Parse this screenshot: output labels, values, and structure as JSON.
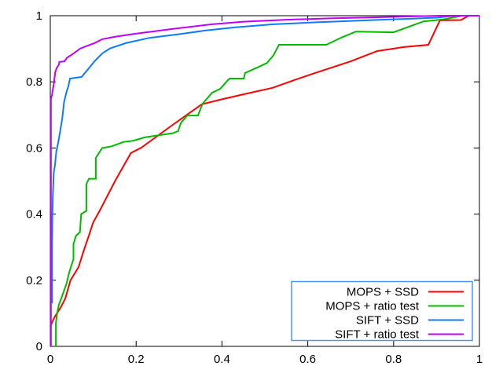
{
  "chart_data": {
    "type": "line",
    "title": "",
    "xlabel": "",
    "ylabel": "",
    "xlim": [
      0,
      1
    ],
    "ylim": [
      0,
      1
    ],
    "x_ticks": [
      "0",
      "0.2",
      "0.4",
      "0.6",
      "0.8",
      "1"
    ],
    "y_ticks": [
      "0",
      "0.2",
      "0.4",
      "0.6",
      "0.8",
      "1"
    ],
    "grid": false,
    "background": "#ffffff",
    "frame_color": "#000000",
    "legend_position": "bottom-right",
    "legend_border_color": "#4d94ff",
    "series": [
      {
        "name": "MOPS + SSD",
        "color": "#ff0000",
        "points": [
          [
            0,
            0.06
          ],
          [
            0.005,
            0.075
          ],
          [
            0.012,
            0.093
          ],
          [
            0.023,
            0.115
          ],
          [
            0.035,
            0.145
          ],
          [
            0.047,
            0.2
          ],
          [
            0.066,
            0.24
          ],
          [
            0.078,
            0.29
          ],
          [
            0.09,
            0.335
          ],
          [
            0.1,
            0.375
          ],
          [
            0.115,
            0.41
          ],
          [
            0.151,
            0.5
          ],
          [
            0.188,
            0.585
          ],
          [
            0.212,
            0.601
          ],
          [
            0.28,
            0.665
          ],
          [
            0.353,
            0.732
          ],
          [
            0.396,
            0.746
          ],
          [
            0.46,
            0.765
          ],
          [
            0.518,
            0.782
          ],
          [
            0.57,
            0.806
          ],
          [
            0.615,
            0.826
          ],
          [
            0.7,
            0.862
          ],
          [
            0.762,
            0.893
          ],
          [
            0.822,
            0.905
          ],
          [
            0.881,
            0.912
          ],
          [
            0.908,
            0.986
          ],
          [
            0.957,
            0.987
          ],
          [
            0.975,
            1
          ],
          [
            1,
            1
          ]
        ]
      },
      {
        "name": "MOPS + ratio test",
        "color": "#00bb00",
        "points": [
          [
            0.013,
            0
          ],
          [
            0.013,
            0.07
          ],
          [
            0.016,
            0.1
          ],
          [
            0.02,
            0.126
          ],
          [
            0.029,
            0.157
          ],
          [
            0.038,
            0.19
          ],
          [
            0.044,
            0.223
          ],
          [
            0.048,
            0.24
          ],
          [
            0.054,
            0.264
          ],
          [
            0.054,
            0.31
          ],
          [
            0.06,
            0.335
          ],
          [
            0.069,
            0.345
          ],
          [
            0.072,
            0.4
          ],
          [
            0.084,
            0.41
          ],
          [
            0.084,
            0.49
          ],
          [
            0.09,
            0.507
          ],
          [
            0.106,
            0.507
          ],
          [
            0.106,
            0.57
          ],
          [
            0.121,
            0.6
          ],
          [
            0.143,
            0.605
          ],
          [
            0.17,
            0.618
          ],
          [
            0.194,
            0.622
          ],
          [
            0.22,
            0.632
          ],
          [
            0.286,
            0.645
          ],
          [
            0.298,
            0.651
          ],
          [
            0.304,
            0.675
          ],
          [
            0.319,
            0.698
          ],
          [
            0.344,
            0.698
          ],
          [
            0.355,
            0.734
          ],
          [
            0.377,
            0.767
          ],
          [
            0.396,
            0.779
          ],
          [
            0.414,
            0.805
          ],
          [
            0.418,
            0.81
          ],
          [
            0.451,
            0.81
          ],
          [
            0.454,
            0.827
          ],
          [
            0.487,
            0.846
          ],
          [
            0.505,
            0.857
          ],
          [
            0.52,
            0.88
          ],
          [
            0.533,
            0.912
          ],
          [
            0.643,
            0.912
          ],
          [
            0.68,
            0.935
          ],
          [
            0.712,
            0.952
          ],
          [
            0.8,
            0.95
          ],
          [
            0.87,
            0.983
          ],
          [
            0.917,
            0.989
          ],
          [
            0.94,
            0.995
          ],
          [
            0.96,
            1
          ],
          [
            1,
            1
          ]
        ]
      },
      {
        "name": "SIFT + SSD",
        "color": "#0d7bff",
        "points": [
          [
            0.004,
            0.13
          ],
          [
            0.004,
            0.3
          ],
          [
            0.005,
            0.4
          ],
          [
            0.006,
            0.46
          ],
          [
            0.008,
            0.525
          ],
          [
            0.011,
            0.549
          ],
          [
            0.014,
            0.589
          ],
          [
            0.018,
            0.613
          ],
          [
            0.023,
            0.651
          ],
          [
            0.028,
            0.691
          ],
          [
            0.032,
            0.739
          ],
          [
            0.038,
            0.77
          ],
          [
            0.042,
            0.786
          ],
          [
            0.046,
            0.81
          ],
          [
            0.073,
            0.815
          ],
          [
            0.088,
            0.838
          ],
          [
            0.103,
            0.862
          ],
          [
            0.121,
            0.886
          ],
          [
            0.139,
            0.901
          ],
          [
            0.176,
            0.917
          ],
          [
            0.231,
            0.933
          ],
          [
            0.304,
            0.945
          ],
          [
            0.36,
            0.955
          ],
          [
            0.432,
            0.965
          ],
          [
            0.52,
            0.974
          ],
          [
            0.62,
            0.98
          ],
          [
            0.72,
            0.985
          ],
          [
            0.82,
            0.99
          ],
          [
            0.9,
            0.994
          ],
          [
            0.93,
            0.998
          ],
          [
            0.96,
            1
          ],
          [
            1,
            1
          ]
        ]
      },
      {
        "name": "SIFT + ratio test",
        "color": "#c000ff",
        "points": [
          [
            0.0015,
            0
          ],
          [
            0.0015,
            0.75
          ],
          [
            0.004,
            0.76
          ],
          [
            0.005,
            0.77
          ],
          [
            0.008,
            0.792
          ],
          [
            0.0115,
            0.83
          ],
          [
            0.015,
            0.842
          ],
          [
            0.02,
            0.852
          ],
          [
            0.021,
            0.86
          ],
          [
            0.033,
            0.862
          ],
          [
            0.039,
            0.873
          ],
          [
            0.051,
            0.883
          ],
          [
            0.07,
            0.901
          ],
          [
            0.088,
            0.91
          ],
          [
            0.103,
            0.917
          ],
          [
            0.121,
            0.929
          ],
          [
            0.15,
            0.936
          ],
          [
            0.194,
            0.945
          ],
          [
            0.286,
            0.96
          ],
          [
            0.377,
            0.974
          ],
          [
            0.45,
            0.982
          ],
          [
            0.55,
            0.988
          ],
          [
            0.65,
            0.992
          ],
          [
            0.75,
            0.995
          ],
          [
            0.85,
            0.998
          ],
          [
            0.91,
            1
          ],
          [
            1,
            1
          ]
        ]
      }
    ]
  }
}
